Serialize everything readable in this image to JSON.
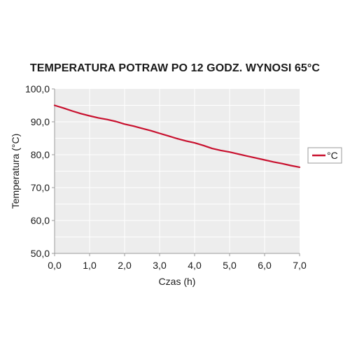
{
  "chart_data": {
    "type": "line",
    "title": "TEMPERATURA POTRAW PO 12 GODZ. WYNOSI 65°C",
    "xlabel": "Czas (h)",
    "ylabel": "Temperatura (°C)",
    "xlim": [
      0,
      7
    ],
    "ylim": [
      50,
      100
    ],
    "x_ticks": [
      "0,0",
      "1,0",
      "2,0",
      "3,0",
      "4,0",
      "5,0",
      "6,0",
      "7,0"
    ],
    "y_ticks": [
      "50,0",
      "60,0",
      "70,0",
      "80,0",
      "90,0",
      "100,0"
    ],
    "grid": true,
    "legend_position": "right",
    "series": [
      {
        "name": "°C",
        "color": "#c8102e",
        "x": [
          0,
          0.25,
          0.5,
          0.75,
          1.0,
          1.25,
          1.5,
          1.75,
          2.0,
          2.25,
          2.5,
          2.75,
          3.0,
          3.25,
          3.5,
          3.75,
          4.0,
          4.25,
          4.5,
          4.75,
          5.0,
          5.25,
          5.5,
          5.75,
          6.0,
          6.25,
          6.5,
          6.75,
          7.0
        ],
        "y": [
          95.0,
          94.2,
          93.3,
          92.5,
          91.8,
          91.2,
          90.7,
          90.1,
          89.3,
          88.7,
          88.0,
          87.3,
          86.5,
          85.7,
          84.9,
          84.2,
          83.6,
          82.8,
          81.9,
          81.3,
          80.8,
          80.2,
          79.6,
          79.0,
          78.4,
          77.8,
          77.3,
          76.7,
          76.2
        ]
      }
    ]
  }
}
